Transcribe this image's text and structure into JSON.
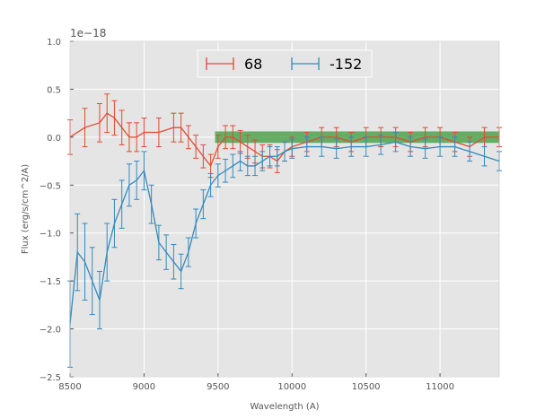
{
  "chart_data": {
    "type": "line",
    "title": "",
    "xlabel": "Wavelength (A)",
    "ylabel": "Flux (erg/s/cm^2/A)",
    "y_offset_label": "1e−18",
    "xlim": [
      8500,
      11400
    ],
    "ylim": [
      -2.5,
      1.0
    ],
    "y_scale": 1e-18,
    "xticks": [
      8500,
      9000,
      9500,
      10000,
      10500,
      11000
    ],
    "xtick_labels": [
      "8500",
      "9000",
      "9500",
      "10000",
      "10500",
      "11000"
    ],
    "yticks": [
      1.0,
      0.5,
      0.0,
      -0.5,
      -1.0,
      -1.5,
      -2.0,
      -2.5
    ],
    "ytick_labels": [
      "1.0",
      "0.5",
      "0.0",
      "−0.5",
      "−1.0",
      "−1.5",
      "−2.0",
      "−2.5"
    ],
    "grid": true,
    "legend_position": "top-center",
    "highlight_band": {
      "x": [
        9480,
        11400
      ],
      "y": [
        -0.06,
        0.06
      ],
      "color": "#3a9a3a"
    },
    "series": [
      {
        "name": "68",
        "color": "#e24a33",
        "x": [
          8500,
          8600,
          8700,
          8750,
          8800,
          8850,
          8900,
          8950,
          9000,
          9100,
          9200,
          9250,
          9300,
          9350,
          9400,
          9450,
          9500,
          9550,
          9600,
          9650,
          9700,
          9750,
          9800,
          9850,
          9900,
          9950,
          10000,
          10100,
          10200,
          10300,
          10400,
          10500,
          10600,
          10700,
          10800,
          10900,
          11000,
          11100,
          11200,
          11300,
          11400
        ],
        "y": [
          0.0,
          0.1,
          0.15,
          0.25,
          0.2,
          0.1,
          0.0,
          0.0,
          0.05,
          0.05,
          0.1,
          0.1,
          0.0,
          -0.1,
          -0.2,
          -0.3,
          -0.1,
          0.0,
          0.0,
          -0.05,
          -0.1,
          -0.15,
          -0.2,
          -0.2,
          -0.25,
          -0.15,
          -0.1,
          -0.05,
          0.0,
          0.0,
          -0.05,
          0.0,
          0.0,
          0.0,
          -0.05,
          0.0,
          0.0,
          -0.05,
          -0.1,
          0.0,
          0.0
        ],
        "yerr": [
          0.18,
          0.2,
          0.2,
          0.2,
          0.18,
          0.18,
          0.15,
          0.15,
          0.15,
          0.15,
          0.15,
          0.15,
          0.12,
          0.12,
          0.12,
          0.12,
          0.12,
          0.12,
          0.12,
          0.12,
          0.12,
          0.12,
          0.12,
          0.12,
          0.12,
          0.1,
          0.1,
          0.1,
          0.1,
          0.1,
          0.1,
          0.1,
          0.1,
          0.1,
          0.1,
          0.1,
          0.1,
          0.1,
          0.1,
          0.1,
          0.1
        ]
      },
      {
        "name": "-152",
        "color": "#348abd",
        "x": [
          8500,
          8550,
          8600,
          8650,
          8700,
          8750,
          8800,
          8850,
          8900,
          8950,
          9000,
          9050,
          9100,
          9150,
          9200,
          9250,
          9300,
          9350,
          9400,
          9450,
          9500,
          9550,
          9600,
          9650,
          9700,
          9750,
          9800,
          9850,
          9900,
          9950,
          10000,
          10100,
          10200,
          10300,
          10400,
          10500,
          10600,
          10700,
          10800,
          10900,
          11000,
          11100,
          11200,
          11300,
          11400
        ],
        "y": [
          -1.95,
          -1.2,
          -1.3,
          -1.5,
          -1.7,
          -1.2,
          -0.9,
          -0.7,
          -0.5,
          -0.45,
          -0.35,
          -0.7,
          -1.1,
          -1.2,
          -1.3,
          -1.4,
          -1.2,
          -0.9,
          -0.7,
          -0.5,
          -0.4,
          -0.35,
          -0.3,
          -0.25,
          -0.3,
          -0.3,
          -0.25,
          -0.2,
          -0.2,
          -0.15,
          -0.12,
          -0.1,
          -0.1,
          -0.12,
          -0.1,
          -0.1,
          -0.08,
          -0.05,
          -0.1,
          -0.12,
          -0.1,
          -0.1,
          -0.15,
          -0.2,
          -0.25
        ],
        "yerr": [
          0.45,
          0.4,
          0.4,
          0.35,
          0.3,
          0.3,
          0.25,
          0.25,
          0.22,
          0.2,
          0.2,
          0.2,
          0.18,
          0.18,
          0.18,
          0.18,
          0.15,
          0.15,
          0.15,
          0.12,
          0.12,
          0.12,
          0.12,
          0.1,
          0.1,
          0.1,
          0.1,
          0.1,
          0.1,
          0.1,
          0.1,
          0.1,
          0.1,
          0.1,
          0.1,
          0.1,
          0.1,
          0.1,
          0.1,
          0.1,
          0.1,
          0.1,
          0.1,
          0.1,
          0.1
        ]
      }
    ]
  }
}
